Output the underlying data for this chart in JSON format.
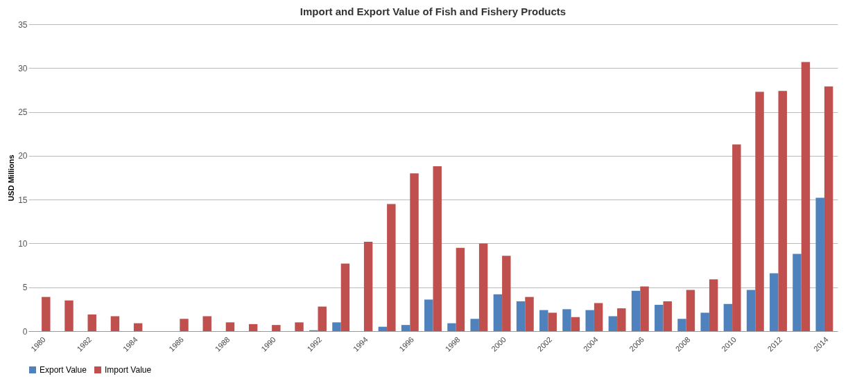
{
  "chart_data": {
    "type": "bar",
    "title": "Import and Export Value of Fish and Fishery Products",
    "ylabel": "USD Millions",
    "categories": [
      "1980",
      null,
      "1982",
      null,
      "1984",
      null,
      "1986",
      null,
      "1988",
      null,
      "1990",
      null,
      "1992",
      null,
      "1994",
      null,
      "1996",
      null,
      "1998",
      null,
      "2000",
      null,
      "2002",
      null,
      "2004",
      null,
      "2006",
      null,
      "2008",
      null,
      "2010",
      null,
      "2012",
      null,
      "2014"
    ],
    "series": [
      {
        "name": "Export Value",
        "color": "#4f81bd",
        "values": [
          null,
          null,
          null,
          null,
          null,
          null,
          null,
          null,
          null,
          null,
          null,
          null,
          0.1,
          1.0,
          null,
          0.5,
          0.7,
          3.6,
          0.9,
          1.4,
          4.2,
          3.4,
          2.4,
          2.5,
          2.4,
          1.7,
          4.6,
          3.0,
          1.4,
          2.1,
          3.1,
          4.7,
          6.6,
          8.8,
          15.2
        ]
      },
      {
        "name": "Import Value",
        "color": "#c0504d",
        "values": [
          3.9,
          3.5,
          1.9,
          1.7,
          0.9,
          null,
          1.4,
          1.7,
          1.0,
          0.8,
          0.7,
          1.0,
          2.8,
          7.7,
          10.2,
          14.5,
          18.0,
          18.8,
          9.5,
          10.0,
          8.6,
          3.9,
          2.1,
          1.6,
          3.2,
          2.6,
          5.1,
          3.4,
          4.7,
          5.9,
          21.3,
          27.3,
          27.4,
          30.7,
          27.9
        ]
      }
    ],
    "ylim": [
      0,
      35
    ],
    "yticks": [
      0,
      5,
      10,
      15,
      20,
      25,
      30,
      35
    ],
    "grid": "y",
    "legend": "bottom"
  }
}
